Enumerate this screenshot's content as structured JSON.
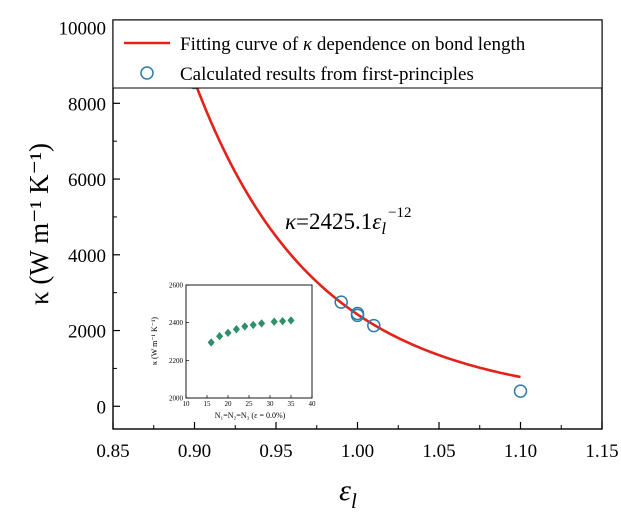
{
  "chart_data": [
    {
      "type": "line",
      "xlim": [
        0.85,
        1.15
      ],
      "ylim": [
        -600,
        10200
      ],
      "x_ticks": [
        "0.85",
        "0.90",
        "0.95",
        "1.00",
        "1.05",
        "1.10",
        "1.15"
      ],
      "y_ticks": [
        "0",
        "2000",
        "4000",
        "6000",
        "8000",
        "10000"
      ],
      "x_tick_values": [
        0.85,
        0.9,
        0.95,
        1.0,
        1.05,
        1.1,
        1.15
      ],
      "y_tick_values": [
        0,
        2000,
        4000,
        6000,
        8000,
        10000
      ],
      "xlabel": "ε",
      "xlabel_sub": "l",
      "ylabel": "κ (W m⁻¹ K⁻¹)",
      "equation": {
        "lhs": "κ",
        "mid": "=2425.1",
        "var": "ε",
        "var_sub": "l",
        "exp": "−12"
      },
      "legend_position": "top-right",
      "series": [
        {
          "name": "Fitting curve of κ dependence on bond length",
          "kind": "curve",
          "color": "#e2231a",
          "coefficient": 2425.1,
          "exponent": -12,
          "x_range": [
            0.9,
            1.1
          ]
        },
        {
          "name": "Calculated results from first-principles",
          "kind": "markers",
          "color": "#2e7ca6",
          "points": [
            {
              "x": 0.9,
              "y": 8550
            },
            {
              "x": 0.99,
              "y": 2750
            },
            {
              "x": 1.0,
              "y": 2450
            },
            {
              "x": 1.0,
              "y": 2400
            },
            {
              "x": 1.01,
              "y": 2130
            },
            {
              "x": 1.1,
              "y": 400
            }
          ]
        }
      ],
      "legend": {
        "curve_label_pre": "Fitting curve of ",
        "curve_label_sym": "κ",
        "curve_label_post": " dependence on bond length",
        "points_label": "Calculated results from first-principles"
      }
    },
    {
      "type": "scatter",
      "xlim": [
        10,
        40
      ],
      "ylim": [
        2000,
        2600
      ],
      "x_ticks": [
        "10",
        "15",
        "20",
        "25",
        "30",
        "35",
        "40"
      ],
      "y_ticks": [
        "2000",
        "2200",
        "2400",
        "2600"
      ],
      "x_tick_values": [
        10,
        15,
        20,
        25,
        30,
        35,
        40
      ],
      "y_tick_values": [
        2000,
        2200,
        2400,
        2600
      ],
      "xlabel": "N₁=N₂=N₃ (ε = 0.0%)",
      "ylabel": "κ (W m⁻¹ K⁻¹)",
      "series": [
        {
          "color": "#2f8f6a",
          "marker": "diamond",
          "points": [
            {
              "x": 16,
              "y": 2295
            },
            {
              "x": 18,
              "y": 2328
            },
            {
              "x": 20,
              "y": 2346
            },
            {
              "x": 22,
              "y": 2365
            },
            {
              "x": 24,
              "y": 2380
            },
            {
              "x": 26,
              "y": 2388
            },
            {
              "x": 28,
              "y": 2396
            },
            {
              "x": 31,
              "y": 2405
            },
            {
              "x": 33,
              "y": 2408
            },
            {
              "x": 35,
              "y": 2412
            }
          ]
        }
      ]
    }
  ]
}
